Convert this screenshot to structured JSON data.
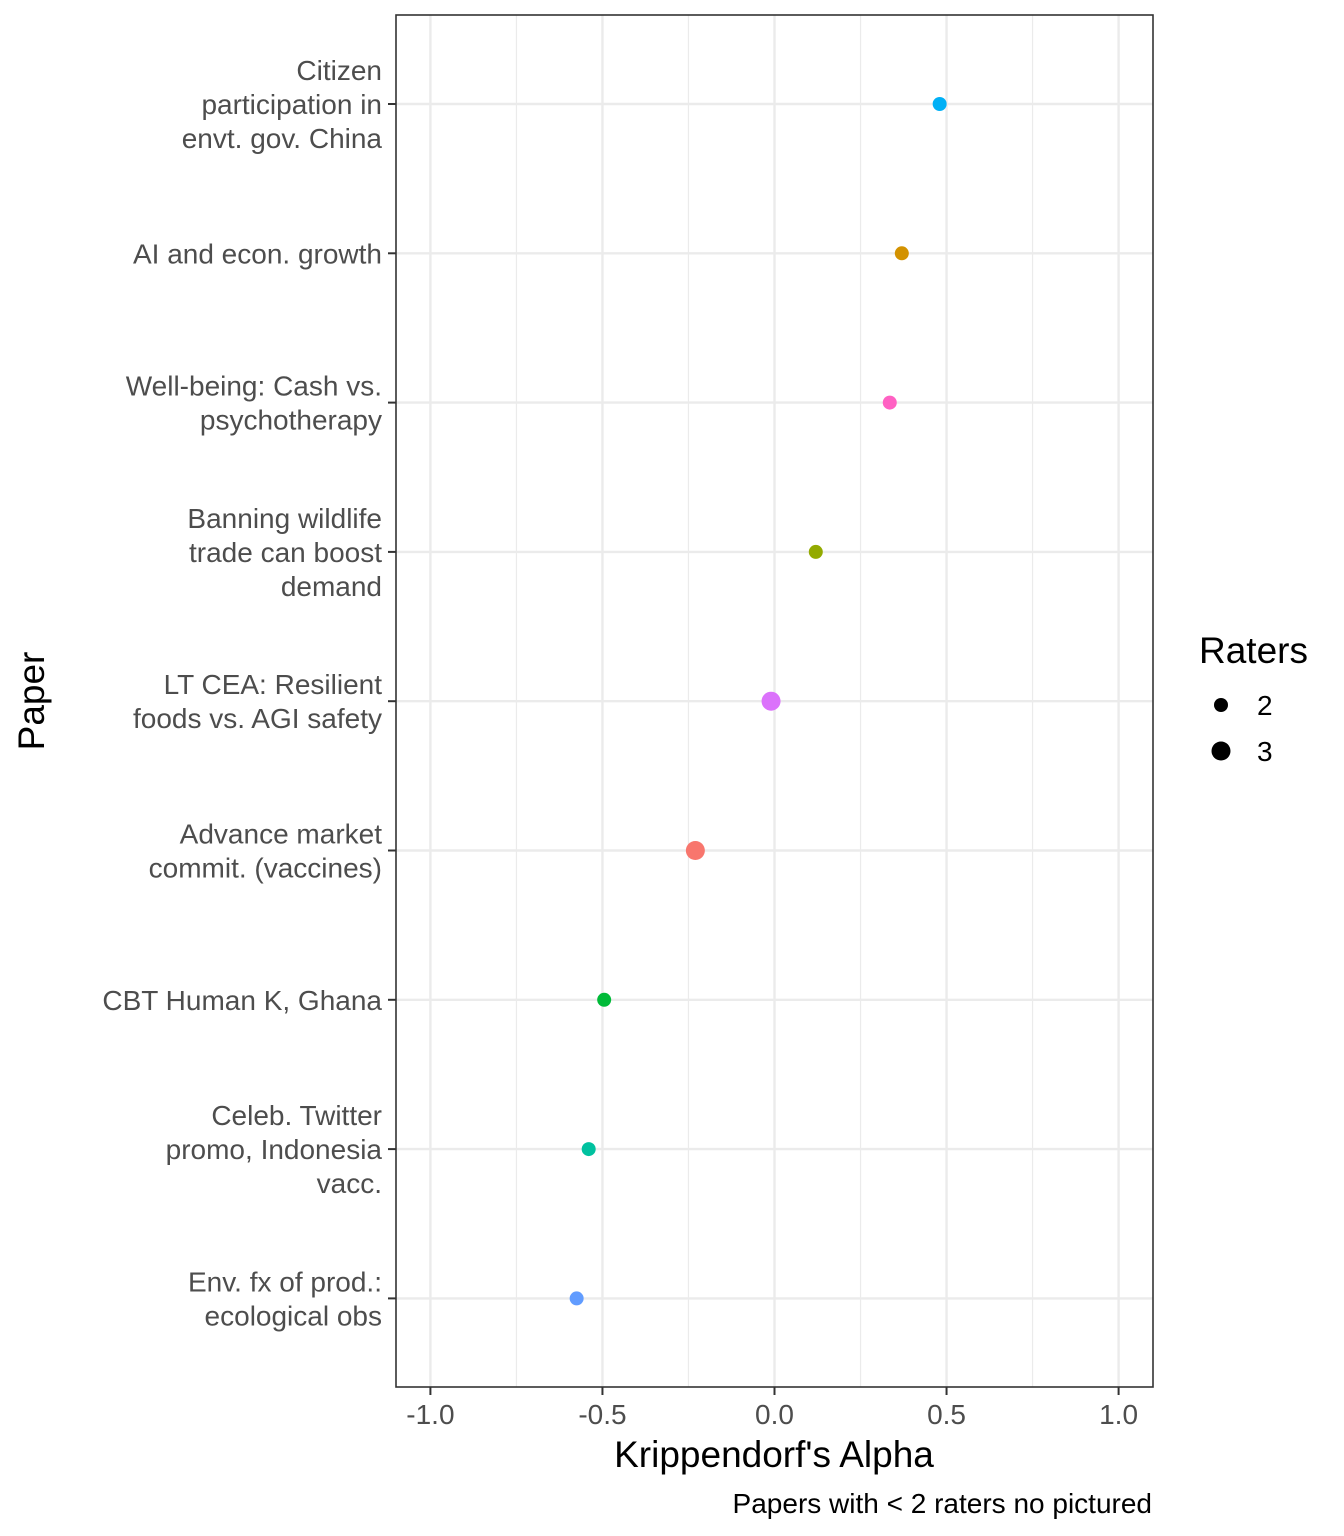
{
  "chart_data": {
    "type": "scatter",
    "xlabel": "Krippendorf's Alpha",
    "ylabel": "Paper",
    "caption": "Papers with < 2 raters no pictured",
    "xlim": [
      -1.1,
      1.1
    ],
    "x_ticks": [
      "-1.0",
      "-0.5",
      "0.0",
      "0.5",
      "1.0"
    ],
    "x_tick_values": [
      -1.0,
      -0.5,
      0.0,
      0.5,
      1.0
    ],
    "grid": true,
    "legend": {
      "title": "Raters",
      "placement": "right",
      "entries": [
        {
          "label": "2",
          "value": 2
        },
        {
          "label": "3",
          "value": 3
        }
      ]
    },
    "categories": [
      [
        "Citizen",
        "participation in",
        "envt. gov. China"
      ],
      [
        "AI and econ. growth"
      ],
      [
        "Well-being: Cash vs.",
        "psychotherapy"
      ],
      [
        "Banning wildlife",
        "trade can boost",
        "demand"
      ],
      [
        "LT CEA: Resilient",
        "foods vs. AGI safety"
      ],
      [
        "Advance market",
        "commit. (vaccines)"
      ],
      [
        "CBT Human K, Ghana"
      ],
      [
        "Celeb. Twitter",
        "promo, Indonesia",
        "vacc."
      ],
      [
        "Env. fx of prod.:",
        "ecological obs"
      ]
    ],
    "points": [
      {
        "alpha": 0.48,
        "raters": 2,
        "color": "#00B0F6"
      },
      {
        "alpha": 0.37,
        "raters": 2,
        "color": "#D39200"
      },
      {
        "alpha": 0.335,
        "raters": 2,
        "color": "#FF61C3"
      },
      {
        "alpha": 0.12,
        "raters": 2,
        "color": "#93AA00"
      },
      {
        "alpha": -0.01,
        "raters": 3,
        "color": "#DB72FB"
      },
      {
        "alpha": -0.23,
        "raters": 3,
        "color": "#F8766D"
      },
      {
        "alpha": -0.495,
        "raters": 2,
        "color": "#00BA38"
      },
      {
        "alpha": -0.54,
        "raters": 2,
        "color": "#00C19F"
      },
      {
        "alpha": -0.575,
        "raters": 2,
        "color": "#619CFF"
      }
    ]
  }
}
